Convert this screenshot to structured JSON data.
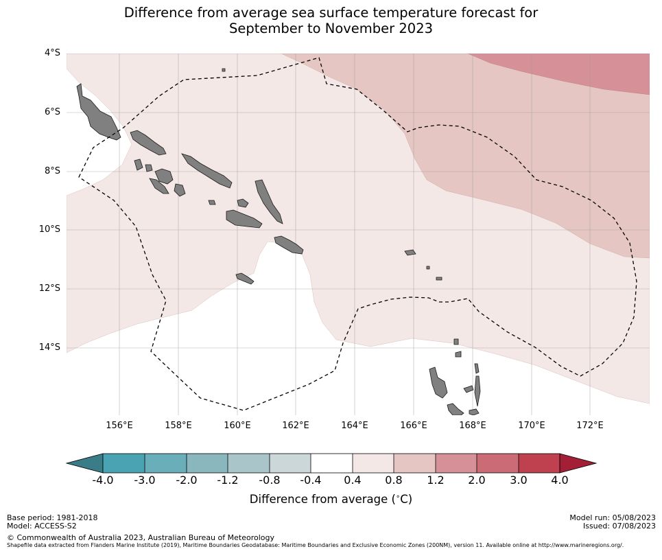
{
  "title": {
    "line1": "Difference from average sea surface temperature forecast for",
    "line2": "September to November 2023"
  },
  "map": {
    "lat_labels": [
      "4°S",
      "6°S",
      "8°S",
      "10°S",
      "12°S",
      "14°S"
    ],
    "lon_labels": [
      "156°E",
      "158°E",
      "160°E",
      "162°E",
      "164°E",
      "166°E",
      "168°E",
      "170°E",
      "172°E"
    ],
    "extent": {
      "lon_min": 154.2,
      "lon_max": 173.9,
      "lat_min": -16.2,
      "lat_max": -4.0
    },
    "colors": {
      "anomaly_0_4_to_0_8": "#f4e8e7",
      "anomaly_0_8_to_1_2": "#e6c6c2",
      "anomaly_1_2_to_2_0": "#d69198",
      "land": "#808080",
      "eez_boundary": "#000000",
      "gridline": "#999999"
    }
  },
  "colorbar": {
    "ticks": [
      "-4.0",
      "-3.0",
      "-2.0",
      "-1.2",
      "-0.8",
      "-0.4",
      "0.4",
      "0.8",
      "1.2",
      "2.0",
      "3.0",
      "4.0"
    ],
    "colors": [
      "#3a7d88",
      "#4aa3b2",
      "#6aaeba",
      "#8ab7be",
      "#a9c5c9",
      "#cbd7d8",
      "#ffffff",
      "#f4e8e7",
      "#e6c6c2",
      "#d69198",
      "#cb6b75",
      "#bf414f",
      "#a21f35"
    ],
    "label": "Difference from average (",
    "label_unit": "C)",
    "degree_symbol": "∘"
  },
  "footer": {
    "base_period": "Base period: 1981-2018",
    "model": "Model: ACCESS-S2",
    "model_run": "Model run: 05/08/2023",
    "issued": "Issued: 07/08/2023",
    "copyright": "© Commonwealth of Australia 2023, Australian Bureau of Meteorology",
    "shapefile_note": "Shapefile data extracted from Flanders Marine Institute (2019), Maritime Boundaries Geodatabase: Maritime Boundaries and Exclusive Economic Zones (200NM), version 11. Available online at http://www.marineregions.org/."
  }
}
